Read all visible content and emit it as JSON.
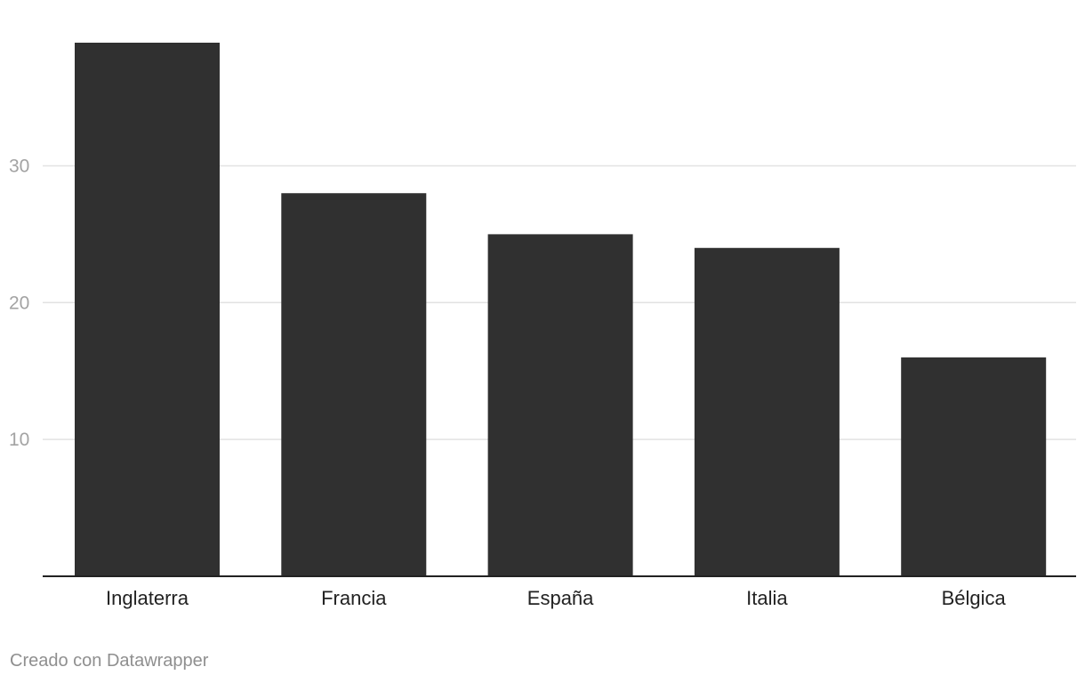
{
  "chart_data": {
    "type": "bar",
    "title": "",
    "xlabel": "",
    "ylabel": "",
    "categories": [
      "Inglaterra",
      "Francia",
      "España",
      "Italia",
      "Bélgica"
    ],
    "values": [
      39,
      28,
      25,
      24,
      16
    ],
    "ylim": [
      0,
      39
    ],
    "yticks": [
      10,
      20,
      30
    ],
    "grid": true,
    "legend": "none",
    "bar_color": "#303030"
  },
  "footer": {
    "credit": "Creado con Datawrapper"
  }
}
